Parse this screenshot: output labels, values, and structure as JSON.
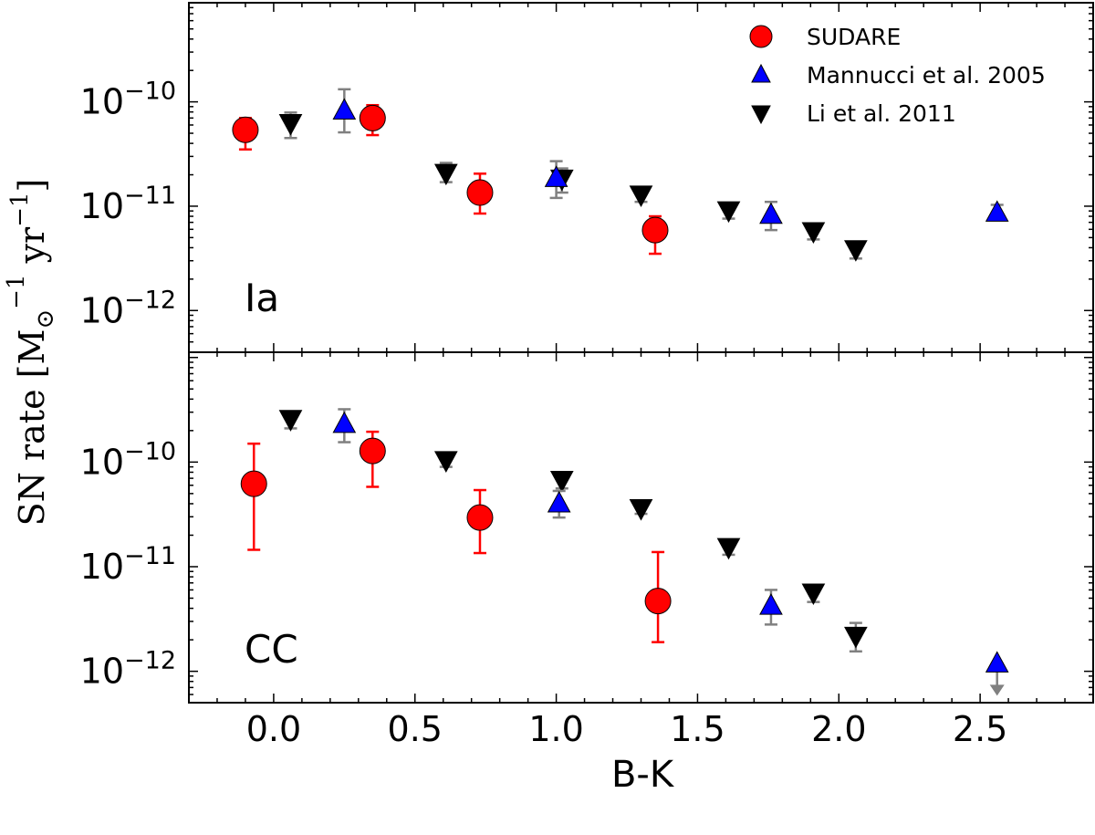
{
  "chart_data": {
    "type": "scatter",
    "x_label": "B-K",
    "y_label": "SN rate [M⊙⁻¹ yr⁻¹]",
    "y_scale": "log",
    "x_range": [
      -0.3,
      2.9
    ],
    "x_ticks": [
      "0.0",
      "0.5",
      "1.0",
      "1.5",
      "2.0",
      "2.5"
    ],
    "x_tick_values": [
      0.0,
      0.5,
      1.0,
      1.5,
      2.0,
      2.5
    ],
    "legend": {
      "placement": "top-right",
      "entries": [
        {
          "key": "sudare",
          "label": "SUDARE"
        },
        {
          "key": "mannucci",
          "label": "Mannucci et al. 2005"
        },
        {
          "key": "li",
          "label": "Li et al. 2011"
        }
      ]
    },
    "series_style": {
      "sudare": {
        "color": "#ff0000",
        "error_color": "#ff0000",
        "marker": "circle"
      },
      "mannucci": {
        "color": "#0000ff",
        "error_color": "#808080",
        "marker": "triangle-up"
      },
      "li": {
        "color": "#000000",
        "error_color": "#808080",
        "marker": "triangle-down"
      }
    },
    "panels": [
      {
        "label": "Ia",
        "y_range_log10": [
          -12.4,
          -9.05
        ],
        "y_ticks": [
          {
            "value": -10,
            "base": "10",
            "exp": "-10"
          },
          {
            "value": -11,
            "base": "10",
            "exp": "-11"
          },
          {
            "value": -12,
            "base": "10",
            "exp": "-12"
          }
        ],
        "series": [
          {
            "key": "sudare",
            "points": [
              {
                "x": -0.1,
                "y": 5.4e-11,
                "lo": 3.5e-11,
                "hi": 7e-11
              },
              {
                "x": 0.35,
                "y": 7e-11,
                "lo": 4.8e-11,
                "hi": 9.3e-11
              },
              {
                "x": 0.73,
                "y": 1.35e-11,
                "lo": 8.5e-12,
                "hi": 2.05e-11
              },
              {
                "x": 1.35,
                "y": 5.9e-12,
                "lo": 3.5e-12,
                "hi": 8e-12
              }
            ]
          },
          {
            "key": "mannucci",
            "points": [
              {
                "x": 0.25,
                "y": 8.2e-11,
                "lo": 5.1e-11,
                "hi": 1.32e-10
              },
              {
                "x": 1.0,
                "y": 1.85e-11,
                "lo": 1.2e-11,
                "hi": 2.7e-11
              },
              {
                "x": 1.76,
                "y": 8.2e-12,
                "lo": 5.9e-12,
                "hi": 1.1e-11
              },
              {
                "x": 2.56,
                "y": 8.6e-12,
                "lo": 8e-12,
                "hi": 1.03e-11
              }
            ]
          },
          {
            "key": "li",
            "points": [
              {
                "x": 0.06,
                "y": 6.3e-11,
                "lo": 4.5e-11,
                "hi": 7.9e-11
              },
              {
                "x": 0.61,
                "y": 2.1e-11,
                "lo": 1.7e-11,
                "hi": 2.6e-11
              },
              {
                "x": 1.02,
                "y": 1.85e-11,
                "lo": 1.35e-11,
                "hi": 2.3e-11
              },
              {
                "x": 1.3,
                "y": 1.3e-11,
                "lo": 1.1e-11,
                "hi": 1.5e-11
              },
              {
                "x": 1.61,
                "y": 9.2e-12,
                "lo": 7.6e-12,
                "hi": 1.05e-11
              },
              {
                "x": 1.91,
                "y": 5.8e-12,
                "lo": 4.8e-12,
                "hi": 6.8e-12
              },
              {
                "x": 2.06,
                "y": 3.9e-12,
                "lo": 3.15e-12,
                "hi": 4.5e-12
              }
            ]
          }
        ]
      },
      {
        "label": "CC",
        "y_range_log10": [
          -12.3,
          -8.95
        ],
        "y_ticks": [
          {
            "value": -10,
            "base": "10",
            "exp": "-10"
          },
          {
            "value": -11,
            "base": "10",
            "exp": "-11"
          },
          {
            "value": -12,
            "base": "10",
            "exp": "-12"
          }
        ],
        "series": [
          {
            "key": "sudare",
            "points": [
              {
                "x": -0.07,
                "y": 6.2e-11,
                "lo": 1.45e-11,
                "hi": 1.5e-10
              },
              {
                "x": 0.35,
                "y": 1.28e-10,
                "lo": 5.8e-11,
                "hi": 1.95e-10
              },
              {
                "x": 0.73,
                "y": 2.95e-11,
                "lo": 1.35e-11,
                "hi": 5.4e-11
              },
              {
                "x": 1.36,
                "y": 4.7e-12,
                "lo": 1.9e-12,
                "hi": 1.38e-11
              }
            ]
          },
          {
            "key": "mannucci",
            "points": [
              {
                "x": 0.25,
                "y": 2.3e-10,
                "lo": 1.55e-10,
                "hi": 3.2e-10
              },
              {
                "x": 1.01,
                "y": 4e-11,
                "lo": 2.95e-11,
                "hi": 5.3e-11
              },
              {
                "x": 1.76,
                "y": 4.2e-12,
                "lo": 2.8e-12,
                "hi": 6e-12
              },
              {
                "x": 2.56,
                "y": 1.18e-12,
                "lo": 6.2e-13,
                "hi": 1.18e-12,
                "upper_limit": true
              }
            ]
          },
          {
            "key": "li",
            "points": [
              {
                "x": 0.06,
                "y": 2.6e-10,
                "lo": 2.1e-10,
                "hi": 3e-10
              },
              {
                "x": 0.61,
                "y": 1.05e-10,
                "lo": 9e-11,
                "hi": 1.2e-10
              },
              {
                "x": 1.02,
                "y": 6.8e-11,
                "lo": 5.6e-11,
                "hi": 7.9e-11
              },
              {
                "x": 1.3,
                "y": 3.65e-11,
                "lo": 3.2e-11,
                "hi": 4.1e-11
              },
              {
                "x": 1.61,
                "y": 1.55e-11,
                "lo": 1.3e-11,
                "hi": 1.8e-11
              },
              {
                "x": 1.91,
                "y": 5.7e-12,
                "lo": 4.6e-12,
                "hi": 6.6e-12
              },
              {
                "x": 2.06,
                "y": 2.2e-12,
                "lo": 1.55e-12,
                "hi": 2.9e-12
              }
            ]
          }
        ]
      }
    ]
  }
}
